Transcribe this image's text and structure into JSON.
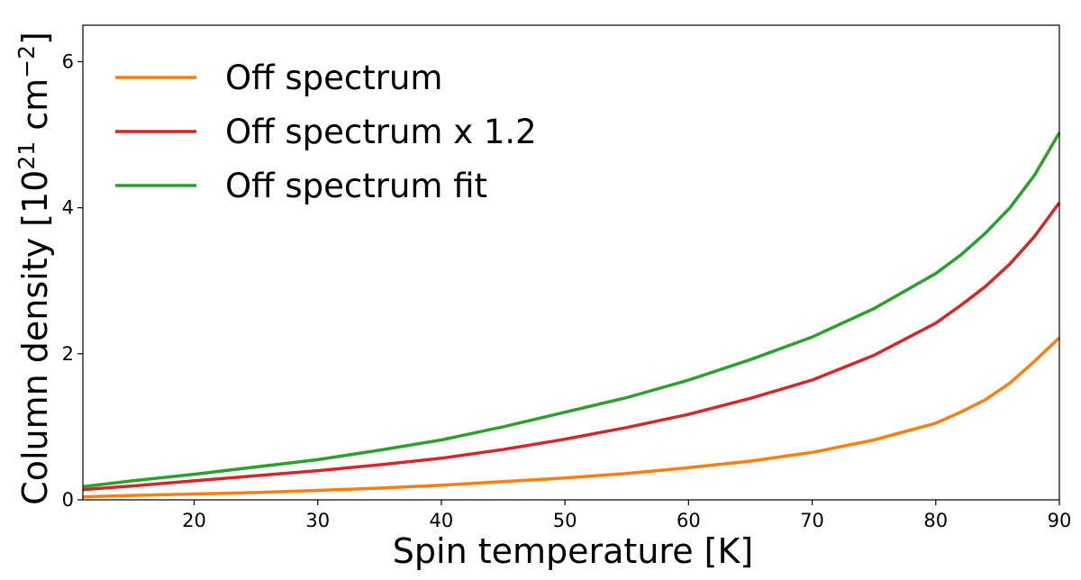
{
  "chart_data": {
    "type": "line",
    "xlabel": "Spin temperature [K]",
    "ylabel": "Column density [10^21 cm^-2]",
    "ylabel_parts": {
      "main": "Column density [10",
      "exp1": "21",
      "unit": " cm",
      "exp2": "−2",
      "close": "]"
    },
    "xlim": [
      11,
      90
    ],
    "ylim": [
      0,
      6.5
    ],
    "xticks": [
      20,
      30,
      40,
      50,
      60,
      70,
      80,
      90
    ],
    "yticks": [
      0,
      2,
      4,
      6
    ],
    "grid": false,
    "legend_position": "top-left",
    "x": [
      11,
      15,
      20,
      25,
      30,
      35,
      40,
      45,
      50,
      55,
      60,
      65,
      70,
      75,
      80,
      82,
      84,
      86,
      88,
      90
    ],
    "series": [
      {
        "name": "Off spectrum",
        "color": "#ff7f0e",
        "values": [
          0.04,
          0.06,
          0.08,
          0.1,
          0.13,
          0.16,
          0.2,
          0.25,
          0.3,
          0.36,
          0.44,
          0.53,
          0.65,
          0.82,
          1.05,
          1.2,
          1.37,
          1.6,
          1.9,
          2.22
        ]
      },
      {
        "name": "Off spectrum x 1.2",
        "color": "#d62728",
        "values": [
          0.14,
          0.19,
          0.26,
          0.33,
          0.4,
          0.48,
          0.57,
          0.69,
          0.83,
          0.99,
          1.17,
          1.39,
          1.64,
          1.98,
          2.42,
          2.66,
          2.92,
          3.23,
          3.61,
          4.07
        ]
      },
      {
        "name": "Off spectrum fit",
        "color": "#2ca02c",
        "values": [
          0.18,
          0.26,
          0.35,
          0.45,
          0.55,
          0.68,
          0.82,
          1.0,
          1.2,
          1.4,
          1.64,
          1.92,
          2.23,
          2.62,
          3.1,
          3.35,
          3.65,
          4.0,
          4.45,
          5.03
        ]
      }
    ]
  }
}
